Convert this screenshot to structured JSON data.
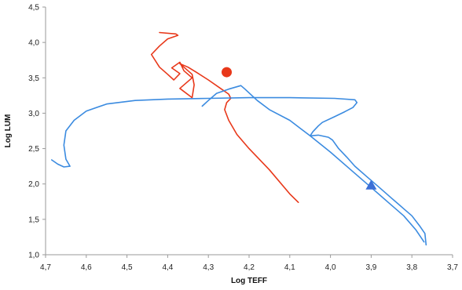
{
  "chart_data": {
    "type": "line",
    "title": "",
    "xlabel": "Log TEFF",
    "ylabel": "Log LUM",
    "xlim": [
      4.7,
      3.7
    ],
    "ylim": [
      1.0,
      4.5
    ],
    "x_reversed": true,
    "grid": false,
    "x_ticks": [
      4.7,
      4.6,
      4.5,
      4.4,
      4.3,
      4.2,
      4.1,
      4.0,
      3.9,
      3.8,
      3.7
    ],
    "x_tick_labels": [
      "4,7",
      "4,6",
      "4,5",
      "4,4",
      "4,3",
      "4,2",
      "4,1",
      "4,0",
      "3,9",
      "3,8",
      "3,7"
    ],
    "y_ticks": [
      1.0,
      1.5,
      2.0,
      2.5,
      3.0,
      3.5,
      4.0,
      4.5
    ],
    "y_tick_labels": [
      "1,0",
      "1,5",
      "2,0",
      "2,5",
      "3,0",
      "3,5",
      "4,0",
      "4,5"
    ],
    "series": [
      {
        "color": "#e8381a",
        "points": [
          [
            4.079,
            1.74
          ],
          [
            4.1,
            1.86
          ],
          [
            4.15,
            2.2
          ],
          [
            4.2,
            2.5
          ],
          [
            4.23,
            2.7
          ],
          [
            4.25,
            2.9
          ],
          [
            4.26,
            3.05
          ],
          [
            4.255,
            3.15
          ],
          [
            4.245,
            3.21
          ],
          [
            4.25,
            3.27
          ],
          [
            4.27,
            3.35
          ],
          [
            4.3,
            3.47
          ],
          [
            4.33,
            3.58
          ],
          [
            4.35,
            3.65
          ],
          [
            4.37,
            3.7
          ],
          [
            4.34,
            3.55
          ],
          [
            4.335,
            3.4
          ],
          [
            4.34,
            3.22
          ],
          [
            4.37,
            3.35
          ],
          [
            4.34,
            3.5
          ],
          [
            4.36,
            3.6
          ],
          [
            4.37,
            3.72
          ],
          [
            4.39,
            3.64
          ],
          [
            4.37,
            3.56
          ],
          [
            4.385,
            3.47
          ],
          [
            4.4,
            3.55
          ],
          [
            4.42,
            3.65
          ],
          [
            4.44,
            3.83
          ],
          [
            4.42,
            3.95
          ],
          [
            4.4,
            4.05
          ],
          [
            4.375,
            4.1
          ],
          [
            4.38,
            4.12
          ],
          [
            4.42,
            4.14
          ]
        ]
      },
      {
        "color": "#3b8be0",
        "points": [
          [
            3.765,
            1.14
          ],
          [
            3.768,
            1.3
          ],
          [
            3.78,
            1.4
          ],
          [
            3.8,
            1.55
          ],
          [
            3.82,
            1.65
          ],
          [
            3.85,
            1.8
          ],
          [
            3.88,
            1.95
          ],
          [
            3.91,
            2.1
          ],
          [
            3.94,
            2.25
          ],
          [
            3.96,
            2.38
          ],
          [
            3.98,
            2.5
          ],
          [
            3.995,
            2.62
          ],
          [
            4.005,
            2.66
          ],
          [
            4.03,
            2.69
          ],
          [
            4.05,
            2.68
          ],
          [
            4.043,
            2.74
          ],
          [
            4.03,
            2.82
          ],
          [
            4.02,
            2.87
          ],
          [
            3.99,
            2.95
          ],
          [
            3.965,
            3.02
          ],
          [
            3.945,
            3.08
          ],
          [
            3.935,
            3.15
          ],
          [
            3.94,
            3.19
          ],
          [
            3.99,
            3.21
          ],
          [
            4.1,
            3.22
          ],
          [
            4.2,
            3.22
          ],
          [
            4.3,
            3.21
          ],
          [
            4.4,
            3.2
          ],
          [
            4.48,
            3.18
          ],
          [
            4.55,
            3.13
          ],
          [
            4.6,
            3.03
          ],
          [
            4.63,
            2.9
          ],
          [
            4.65,
            2.75
          ],
          [
            4.655,
            2.55
          ],
          [
            4.65,
            2.35
          ],
          [
            4.64,
            2.25
          ],
          [
            4.655,
            2.24
          ],
          [
            4.67,
            2.28
          ],
          [
            4.685,
            2.34
          ]
        ]
      },
      {
        "color": "#3b8be0",
        "points": [
          [
            3.77,
            1.18
          ],
          [
            3.79,
            1.35
          ],
          [
            3.82,
            1.55
          ],
          [
            3.86,
            1.75
          ],
          [
            3.9,
            1.95
          ],
          [
            3.95,
            2.2
          ],
          [
            4.0,
            2.45
          ],
          [
            4.05,
            2.68
          ],
          [
            4.1,
            2.9
          ],
          [
            4.15,
            3.05
          ],
          [
            4.18,
            3.18
          ],
          [
            4.21,
            3.34
          ],
          [
            4.22,
            3.39
          ],
          [
            4.25,
            3.34
          ],
          [
            4.28,
            3.28
          ],
          [
            4.3,
            3.18
          ],
          [
            4.315,
            3.1
          ]
        ]
      }
    ],
    "markers": [
      {
        "shape": "circle",
        "x": 4.255,
        "y": 3.58,
        "color": "#e8381a"
      },
      {
        "shape": "triangle",
        "x": 3.9,
        "y": 1.98,
        "color": "#3b6fd6"
      }
    ]
  }
}
